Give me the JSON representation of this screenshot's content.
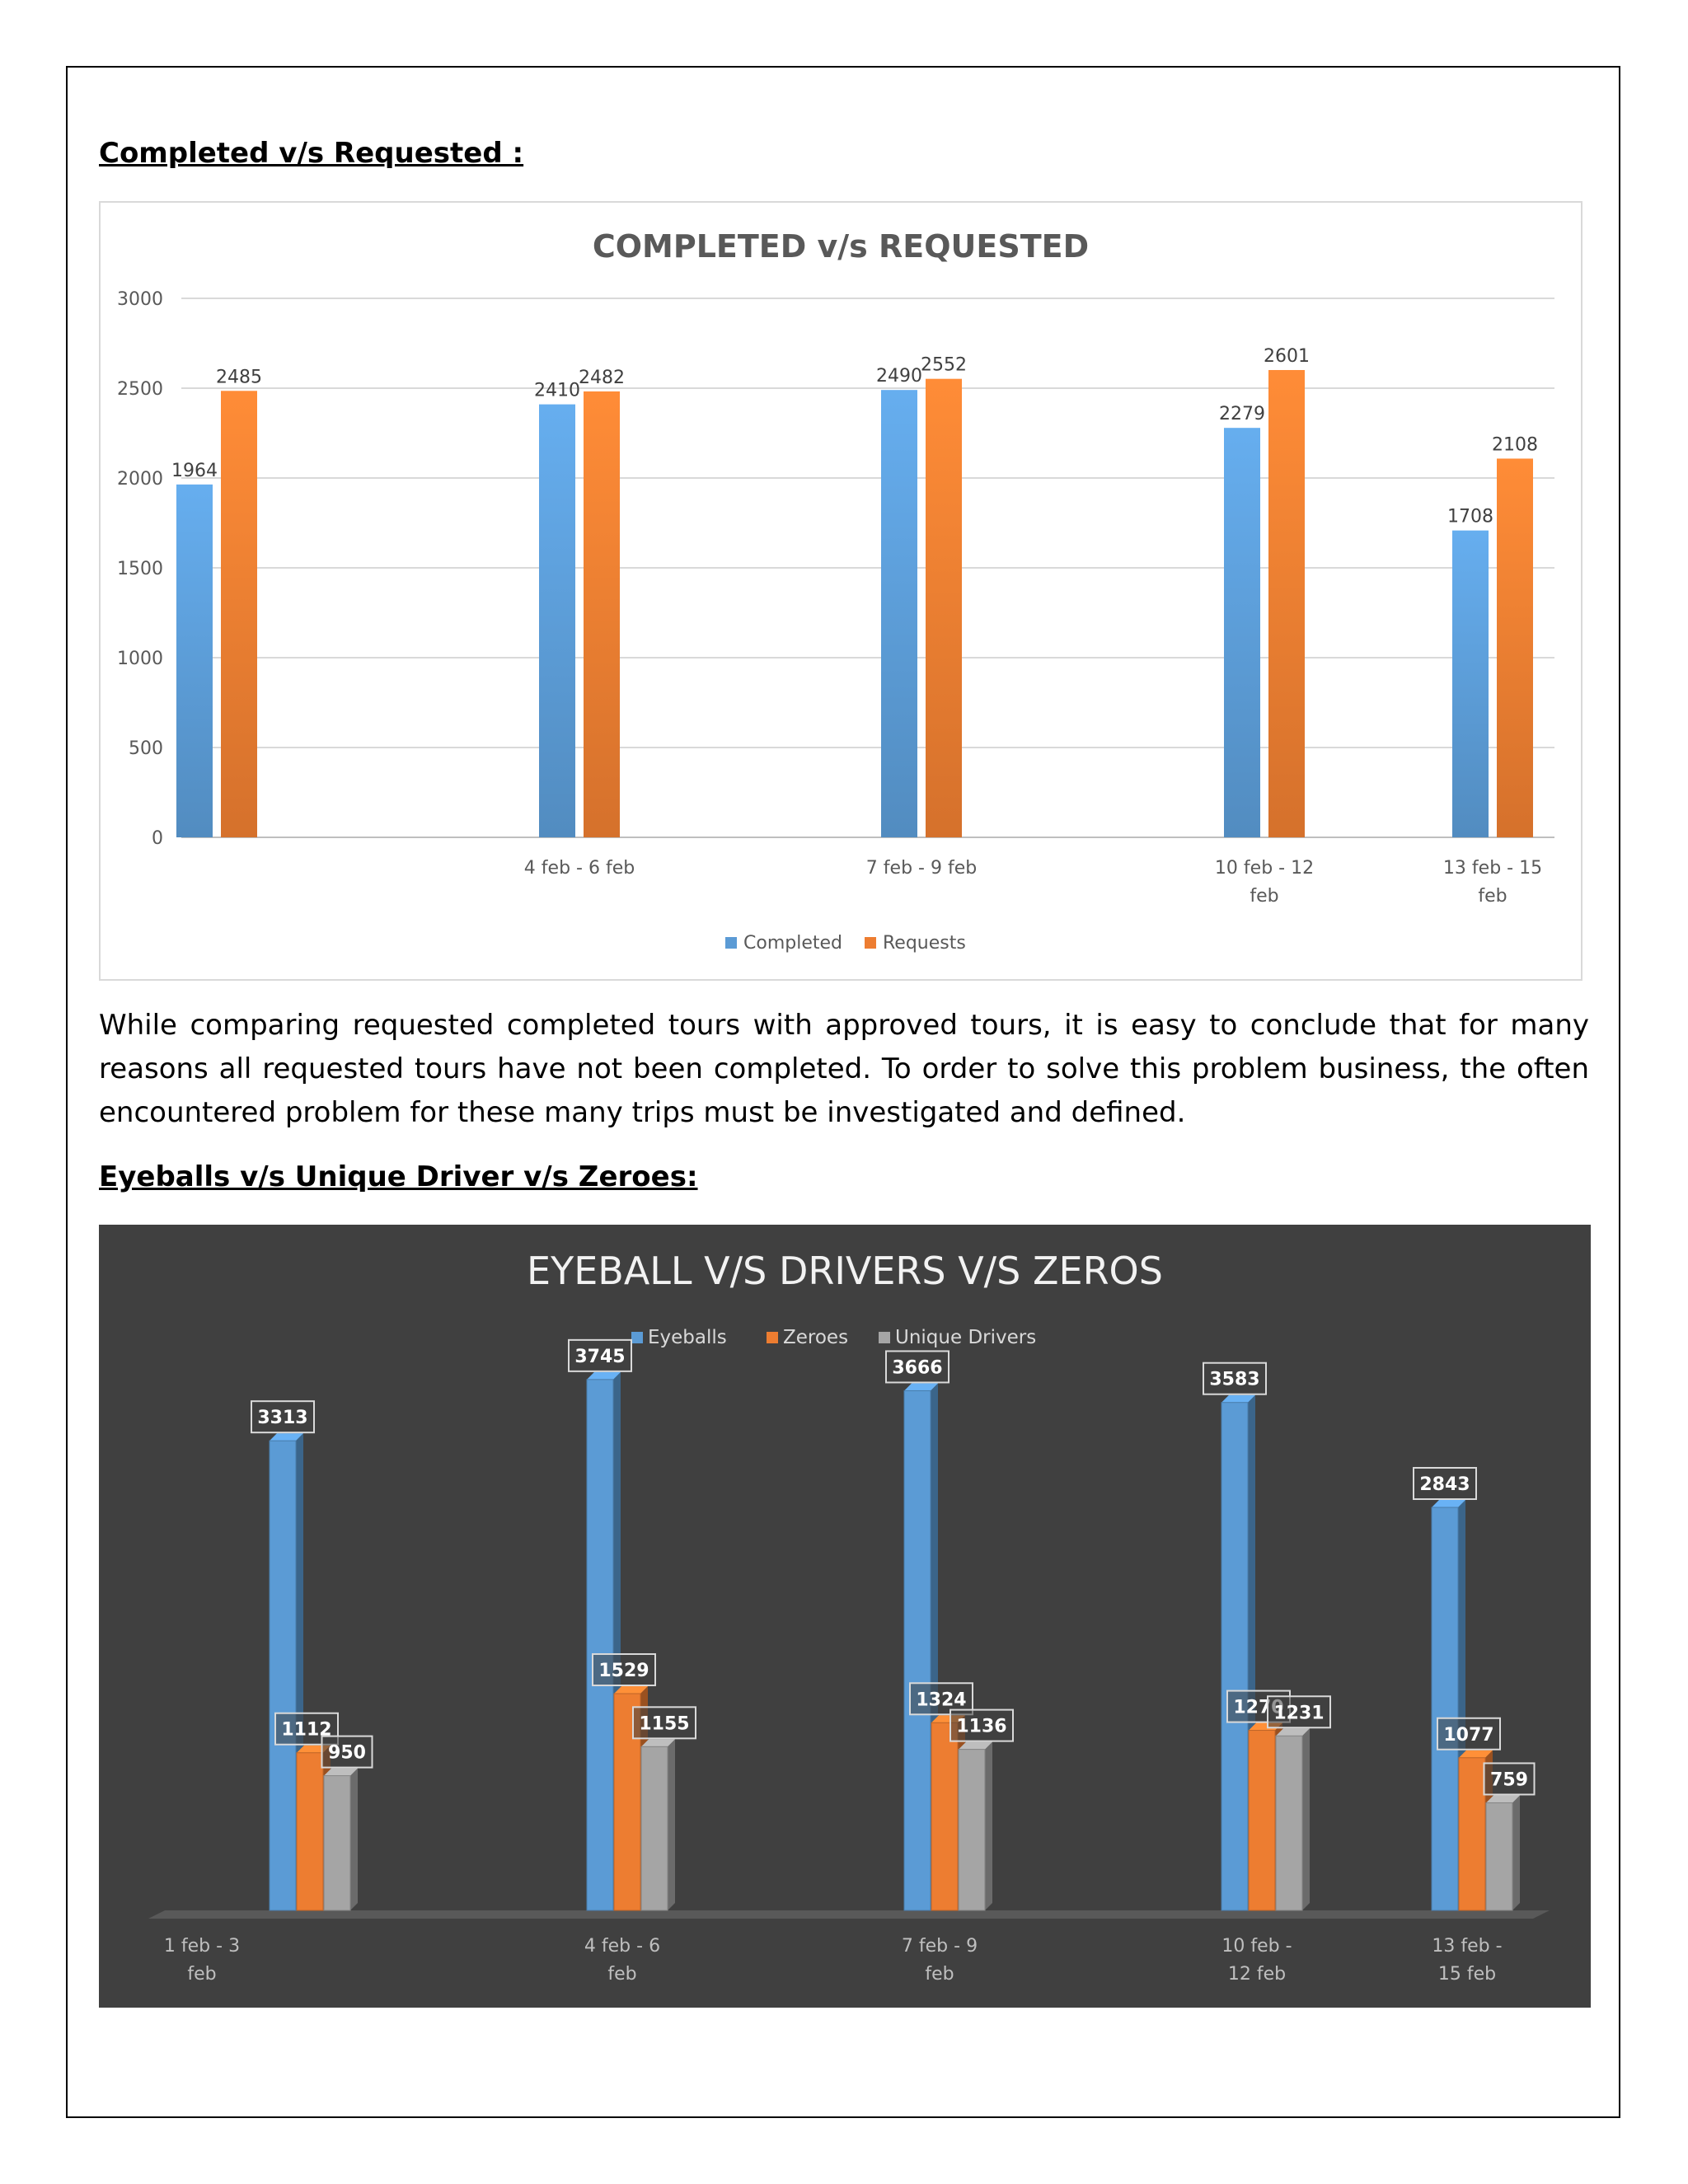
{
  "section1": {
    "heading": "Completed v/s Requested :"
  },
  "paragraph": "While comparing requested completed tours with approved tours, it is easy to conclude that for many reasons all requested tours have not been completed. To order to solve this problem business, the often encountered problem for these many trips must be investigated and defined.",
  "section2": {
    "heading": "Eyeballs v/s Unique Driver v/s Zeroes:"
  },
  "colors": {
    "completed": "#5b9bd5",
    "requests": "#ed7d31",
    "eyeballs": "#5b9bd5",
    "zeroes": "#ed7d31",
    "drivers": "#a5a5a5",
    "dark_bg": "#404040"
  },
  "chart_data": [
    {
      "type": "bar",
      "title": "COMPLETED v/s REQUESTED",
      "categories": [
        "",
        "4 feb - 6 feb",
        "7 feb - 9 feb",
        "10 feb - 12 feb",
        "13 feb - 15 feb"
      ],
      "category_lines": [
        [
          ""
        ],
        [
          "4 feb - 6 feb"
        ],
        [
          "7 feb - 9 feb"
        ],
        [
          "10 feb - 12",
          "feb"
        ],
        [
          "13 feb - 15",
          "feb"
        ]
      ],
      "series": [
        {
          "name": "Completed",
          "values": [
            1964,
            2410,
            2490,
            2279,
            1708
          ]
        },
        {
          "name": "Requests",
          "values": [
            2485,
            2482,
            2552,
            2601,
            2108
          ]
        }
      ],
      "ylim": [
        0,
        3000
      ],
      "yticks": [
        0,
        500,
        1000,
        1500,
        2000,
        2500,
        3000
      ],
      "grid": true,
      "legend": "bottom"
    },
    {
      "type": "bar",
      "title": "EYEBALL V/S DRIVERS V/S ZEROS",
      "categories": [
        "1 feb - 3 feb",
        "4 feb - 6 feb",
        "7 feb - 9 feb",
        "10 feb - 12 feb",
        "13 feb - 15 feb"
      ],
      "category_lines": [
        [
          "1 feb - 3",
          "feb"
        ],
        [
          "4 feb - 6",
          "feb"
        ],
        [
          "7 feb - 9",
          "feb"
        ],
        [
          "10 feb -",
          "12 feb"
        ],
        [
          "13 feb -",
          "15 feb"
        ]
      ],
      "series": [
        {
          "name": "Eyeballs",
          "values": [
            3313,
            3745,
            3666,
            3583,
            2843
          ]
        },
        {
          "name": "Zeroes",
          "values": [
            1112,
            1529,
            1324,
            1270,
            1077
          ]
        },
        {
          "name": "Unique Drivers",
          "values": [
            950,
            1155,
            1136,
            1231,
            759
          ]
        }
      ],
      "grid": false,
      "legend": "top"
    }
  ]
}
